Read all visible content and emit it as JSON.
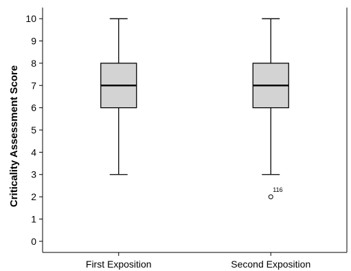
{
  "chart_data": {
    "type": "box",
    "ylabel": "Criticality Assessment Score",
    "xlabel": "",
    "ylim": [
      -0.5,
      10.5
    ],
    "yticks": [
      0,
      1,
      2,
      3,
      4,
      5,
      6,
      7,
      8,
      9,
      10
    ],
    "categories": [
      "First Exposition",
      "Second Exposition"
    ],
    "boxes": [
      {
        "category": "First Exposition",
        "min": 3,
        "q1": 6,
        "median": 7,
        "q3": 8,
        "max": 10,
        "outliers": []
      },
      {
        "category": "Second Exposition",
        "min": 3,
        "q1": 6,
        "median": 7,
        "q3": 8,
        "max": 10,
        "outliers": [
          {
            "value": 2,
            "label": "116"
          }
        ]
      }
    ],
    "box_fill": "#d3d3d3",
    "grid": false
  }
}
